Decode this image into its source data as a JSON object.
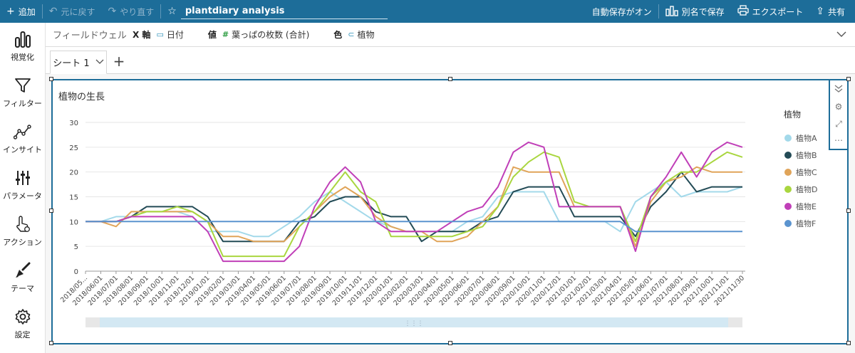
{
  "topbar": {
    "add_label": "追加",
    "undo_label": "元に戻す",
    "redo_label": "やり直す",
    "analysis_title": "plantdiary analysis",
    "autosave_label": "自動保存がオン",
    "save_as_label": "別名で保存",
    "export_label": "エクスポート",
    "share_label": "共有"
  },
  "sidebar": {
    "items": [
      {
        "label": "視覚化",
        "icon": "bar-chart-icon"
      },
      {
        "label": "フィルター",
        "icon": "filter-icon"
      },
      {
        "label": "インサイト",
        "icon": "insight-icon"
      },
      {
        "label": "パラメータ",
        "icon": "parameter-icon"
      },
      {
        "label": "アクション",
        "icon": "action-icon"
      },
      {
        "label": "テーマ",
        "icon": "theme-brush-icon"
      },
      {
        "label": "設定",
        "icon": "settings-gear-icon"
      }
    ]
  },
  "fieldwells": {
    "title": "フィールドウェル",
    "x_key": "X 軸",
    "x_value": "日付",
    "value_key": "値",
    "value_value": "葉っぱの枚数 (合計)",
    "color_key": "色",
    "color_value": "植物"
  },
  "sheets": {
    "active": "シート 1"
  },
  "visual": {
    "title": "植物の生長"
  },
  "colors": {
    "accent": "#1d6d99"
  },
  "chart_data": {
    "type": "line",
    "title": "植物の生長",
    "ylim": [
      0,
      30
    ],
    "yticks": [
      0,
      5,
      10,
      15,
      20,
      25,
      30
    ],
    "grid": true,
    "legend_title": "植物",
    "legend_position": "right",
    "x": [
      "2018/05/01",
      "2018/06/01",
      "2018/07/01",
      "2018/08/01",
      "2018/09/01",
      "2018/10/01",
      "2018/11/01",
      "2018/12/01",
      "2019/01/01",
      "2019/02/01",
      "2019/03/01",
      "2019/04/01",
      "2019/05/01",
      "2019/06/01",
      "2019/07/01",
      "2019/08/01",
      "2019/09/01",
      "2019/10/01",
      "2019/11/01",
      "2019/12/01",
      "2020/01/01",
      "2020/02/01",
      "2020/03/01",
      "2020/04/01",
      "2020/05/01",
      "2020/06/01",
      "2020/07/01",
      "2020/08/01",
      "2020/09/01",
      "2020/10/01",
      "2020/11/01",
      "2020/12/01",
      "2021/01/01",
      "2021/02/01",
      "2021/03/01",
      "2021/04/01",
      "2021/05/01",
      "2021/06/01",
      "2021/07/01",
      "2021/08/01",
      "2021/09/01",
      "2021/10/01",
      "2021/11/01",
      "2021/11/30"
    ],
    "tick_labels": [
      "2018/05...",
      "2018/06/01",
      "2018/07/01",
      "2018/08/01",
      "2018/09/01",
      "2018/10/01",
      "2018/11/01",
      "2018/12/01",
      "2019/01/01",
      "2019/02/01",
      "2019/03/01",
      "2019/04/01",
      "2019/05/01",
      "2019/06/01",
      "2019/07/01",
      "2019/08/01",
      "2019/09/01",
      "2019/10/01",
      "2019/11/01",
      "2019/12/01",
      "2020/01/01",
      "2020/02/01",
      "2020/03/01",
      "2020/04/01",
      "2020/05/01",
      "2020/06/01",
      "2020/07/01",
      "2020/08/01",
      "2020/09/01",
      "2020/10/01",
      "2020/11/01",
      "2020/12/01",
      "2021/01/01",
      "2021/02/01",
      "2021/03/01",
      "2021/04/01",
      "2021/05/01",
      "2021/06/01",
      "2021/07/01",
      "2021/08/01",
      "2021/09/01",
      "2021/10/01",
      "2021/11/01",
      "2021/11/30"
    ],
    "series": [
      {
        "name": "植物A",
        "color": "#a3d9ea",
        "values": [
          10,
          10,
          11,
          11,
          12,
          12,
          12,
          11,
          8,
          8,
          8,
          7,
          7,
          9,
          11,
          14,
          16,
          14,
          12,
          10,
          9,
          8,
          8,
          8,
          8,
          10,
          11,
          15,
          16,
          16,
          16,
          10,
          10,
          10,
          10,
          8,
          14,
          16,
          18,
          15,
          16,
          16,
          16,
          17
        ]
      },
      {
        "name": "植物B",
        "color": "#234b56",
        "values": [
          10,
          10,
          10,
          11,
          13,
          13,
          13,
          13,
          11,
          6,
          6,
          6,
          6,
          6,
          10,
          11,
          14,
          15,
          15,
          12,
          11,
          11,
          6,
          8,
          8,
          8,
          10,
          11,
          16,
          17,
          17,
          17,
          11,
          11,
          11,
          11,
          7,
          13,
          16,
          20,
          16,
          17,
          17,
          17
        ]
      },
      {
        "name": "植物C",
        "color": "#e0a459",
        "values": [
          10,
          10,
          9,
          12,
          12,
          12,
          12,
          12,
          10,
          7,
          7,
          6,
          6,
          6,
          9,
          12,
          15,
          17,
          15,
          11,
          9,
          8,
          8,
          6,
          6,
          7,
          10,
          13,
          21,
          20,
          20,
          20,
          13,
          13,
          13,
          13,
          5,
          14,
          18,
          19,
          21,
          20,
          20,
          20
        ]
      },
      {
        "name": "植物D",
        "color": "#a9d63f",
        "values": [
          10,
          10,
          10,
          11,
          12,
          12,
          13,
          12,
          10,
          3,
          3,
          3,
          3,
          3,
          9,
          12,
          16,
          20,
          16,
          14,
          7,
          7,
          7,
          7,
          7,
          8,
          9,
          13,
          19,
          22,
          24,
          23,
          14,
          13,
          13,
          13,
          6,
          15,
          18,
          20,
          20,
          22,
          24,
          23
        ]
      },
      {
        "name": "植物E",
        "color": "#c03fb8",
        "values": [
          10,
          10,
          10,
          11,
          11,
          11,
          11,
          11,
          8,
          2,
          2,
          2,
          2,
          2,
          5,
          13,
          18,
          21,
          18,
          10,
          8,
          8,
          8,
          8,
          10,
          12,
          13,
          17,
          24,
          26,
          25,
          13,
          13,
          13,
          13,
          13,
          4,
          15,
          19,
          24,
          19,
          24,
          26,
          25
        ]
      },
      {
        "name": "植物F",
        "color": "#5b94cf",
        "values": [
          10,
          10,
          10,
          10,
          10,
          10,
          10,
          10,
          10,
          10,
          10,
          10,
          10,
          10,
          10,
          10,
          10,
          10,
          10,
          10,
          10,
          10,
          10,
          10,
          10,
          10,
          10,
          10,
          10,
          10,
          10,
          10,
          10,
          10,
          10,
          10,
          8,
          8,
          8,
          8,
          8,
          8,
          8,
          8
        ]
      }
    ]
  }
}
